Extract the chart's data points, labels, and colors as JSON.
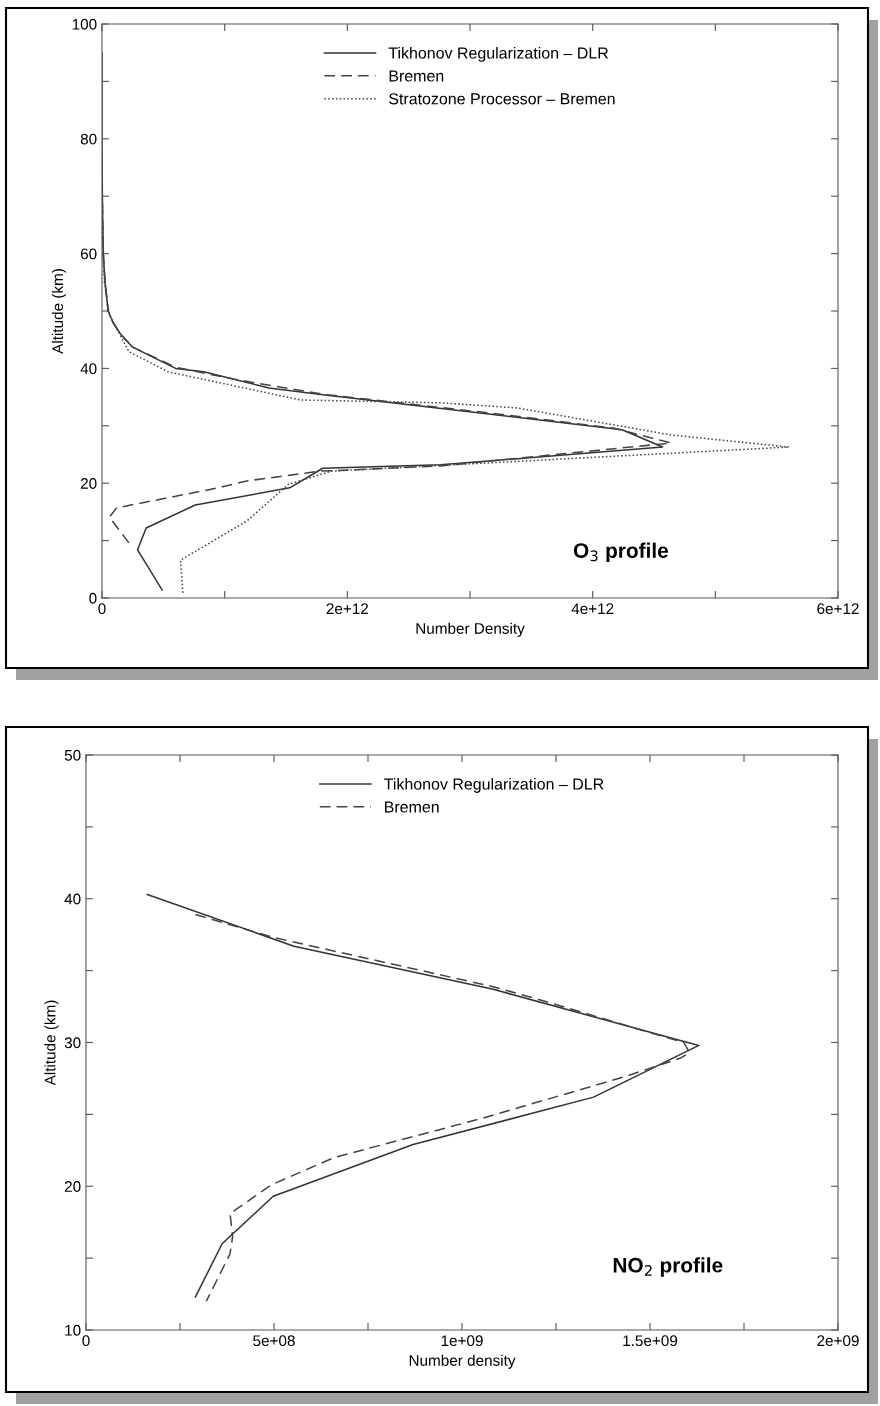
{
  "chart_data": [
    {
      "type": "line",
      "xlabel": "Number Density",
      "ylabel": "Altitude (km)",
      "annotations": [
        "O$_{3}$ profile"
      ],
      "xlim": [
        0,
        6000000000000.0
      ],
      "ylim": [
        0,
        100
      ],
      "xticks": [
        {
          "value": 0,
          "label": "0"
        },
        {
          "value": 1000000000000.0,
          "label": null
        },
        {
          "value": 2000000000000.0,
          "label": "2e+12"
        },
        {
          "value": 3000000000000.0,
          "label": null
        },
        {
          "value": 4000000000000.0,
          "label": "4e+12"
        },
        {
          "value": 5000000000000.0,
          "label": null
        },
        {
          "value": 6000000000000.0,
          "label": "6e+12"
        }
      ],
      "yticks": [
        0,
        {
          "value": 10,
          "label": null
        },
        20,
        {
          "value": 30,
          "label": null
        },
        40,
        {
          "value": 50,
          "label": null
        },
        60,
        {
          "value": 70,
          "label": null
        },
        80,
        {
          "value": 90,
          "label": null
        },
        100
      ],
      "grid": false,
      "legend": "top",
      "marker": "none",
      "series": [
        {
          "name": "Tikhonov Regularization – DLR",
          "color": "#333333",
          "line_style": "solid",
          "x": [
            490000000000.0,
            290000000000.0,
            360000000000.0,
            760000000000.0,
            1530000000000.0,
            1800000000000.0,
            2760000000000.0,
            4570000000000.0,
            4240000000000.0,
            3170000000000.0,
            1800000000000.0,
            1360000000000.0,
            830000000000.0,
            600000000000.0,
            250000000000.0,
            150000000000.0,
            90000000000.0,
            50000000000.0,
            25000000000.0,
            10000000000.0,
            3000000000.0,
            0,
            0
          ],
          "values": [
            1.4,
            8.4,
            12.2,
            16.2,
            19.2,
            22.6,
            23.2,
            26.3,
            29.3,
            32,
            35.4,
            36.6,
            39.4,
            40,
            43.7,
            46,
            48,
            50,
            55,
            60,
            70,
            80,
            95
          ]
        },
        {
          "name": "Bremen",
          "color": "#444444",
          "line_style": "dashed",
          "x": [
            220000000000.0,
            60000000000.0,
            120000000000.0,
            950000000000.0,
            1180000000000.0,
            1780000000000.0,
            2760000000000.0,
            4640000000000.0,
            4170000000000.0,
            3170000000000.0,
            1800000000000.0,
            1080000000000.0,
            600000000000.0,
            250000000000.0,
            150000000000.0,
            90000000000.0,
            50000000000.0,
            25000000000.0,
            10000000000.0,
            3000000000.0
          ],
          "values": [
            9.6,
            14.1,
            15.7,
            19.2,
            20.4,
            22.1,
            23.0,
            27,
            29.6,
            32.2,
            35.5,
            38.1,
            40.2,
            43.7,
            46,
            48,
            50,
            55,
            60,
            70
          ]
        },
        {
          "name": "Stratozone Processor – Bremen",
          "color": "#444444",
          "line_style": "dotted",
          "x": [
            660000000000.0,
            640000000000.0,
            1180000000000.0,
            1520000000000.0,
            1870000000000.0,
            5600000000000.0,
            4640000000000.0,
            3390000000000.0,
            2760000000000.0,
            1620000000000.0,
            540000000000.0,
            220000000000.0,
            60000000000.0,
            20000000000.0,
            5000000000.0
          ],
          "values": [
            0.9,
            6.6,
            13.4,
            19.8,
            22.1,
            26.3,
            28.4,
            33.1,
            34,
            34.5,
            39.4,
            42.9,
            49.3,
            55,
            65
          ]
        }
      ]
    },
    {
      "type": "line",
      "xlabel": "Number density",
      "ylabel": "Altitude (km)",
      "annotations": [
        "NO$_{2}$ profile"
      ],
      "xlim": [
        0,
        2000000000.0
      ],
      "ylim": [
        10,
        50
      ],
      "xticks": [
        0,
        {
          "value": 250000000.0,
          "label": null
        },
        {
          "value": 500000000.0,
          "label": "5e+08"
        },
        {
          "value": 750000000.0,
          "label": null
        },
        {
          "value": 1000000000.0,
          "label": "1e+09"
        },
        {
          "value": 1250000000.0,
          "label": null
        },
        {
          "value": 1500000000.0,
          "label": "1.5e+09"
        },
        {
          "value": 1750000000.0,
          "label": null
        },
        {
          "value": 2000000000.0,
          "label": "2e+09"
        }
      ],
      "yticks": [
        10,
        {
          "value": 15,
          "label": null
        },
        20,
        {
          "value": 25,
          "label": null
        },
        30,
        {
          "value": 35,
          "label": null
        },
        40,
        {
          "value": 45,
          "label": null
        },
        50
      ],
      "grid": false,
      "legend": "top",
      "marker": "none",
      "series": [
        {
          "name": "Tikhonov Regularization – DLR",
          "color": "#333333",
          "line_style": "solid",
          "x": [
            163000000.0,
            553000000.0,
            1083000000.0,
            1600000000.0,
            1630000000.0,
            1350000000.0,
            870000000.0,
            498000000.0,
            362000000.0,
            291000000.0
          ],
          "values": [
            40.3,
            36.7,
            33.7,
            30.0,
            29.8,
            26.2,
            22.9,
            19.3,
            16.0,
            12.3
          ]
        },
        {
          "name": "Bremen",
          "color": "#444444",
          "line_style": "dashed",
          "x": [
            291000000.0,
            500000000.0,
            1080000000.0,
            1190000000.0,
            1590000000.0,
            1605000000.0,
            1580000000.0,
            1430000000.0,
            1050000000.0,
            660000000.0,
            493000000.0,
            383000000.0,
            390000000.0,
            383000000.0,
            320000000.0
          ],
          "values": [
            38.9,
            37.3,
            33.9,
            33.1,
            30.0,
            29.3,
            28.9,
            27.6,
            24.7,
            22.0,
            20.1,
            18.1,
            16.5,
            15.3,
            12.0
          ]
        }
      ]
    }
  ]
}
